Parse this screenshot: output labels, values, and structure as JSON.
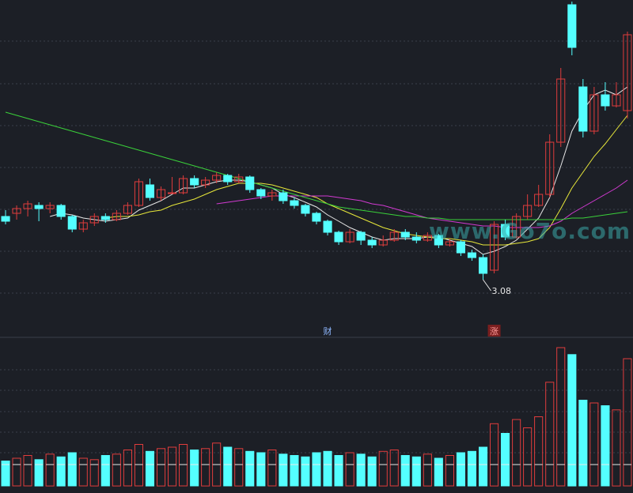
{
  "watermark": "www.Go7o.com",
  "colors": {
    "background": "#1c1f26",
    "up": "#e03c3c",
    "down": "#54ffff",
    "ma_white": "#e8e8e8",
    "ma_yellow": "#e8e83a",
    "ma_magenta": "#d13ad1",
    "ma_green": "#3ad13a",
    "grid": "#3a3f4a",
    "label_text": "#e8e8e8",
    "marker_red_bg": "#7a1f1f"
  },
  "chart_data": {
    "type": "candlestick",
    "price_range": [
      2.75,
      4.85
    ],
    "low_annotation": "3.08",
    "markers": [
      {
        "text": "财",
        "index": 29
      },
      {
        "text": "涨",
        "index": 44
      }
    ],
    "candles": [
      [
        3.48,
        3.45,
        3.52,
        3.43
      ],
      [
        3.5,
        3.53,
        3.55,
        3.46
      ],
      [
        3.53,
        3.56,
        3.58,
        3.48
      ],
      [
        3.55,
        3.53,
        3.57,
        3.45
      ],
      [
        3.53,
        3.55,
        3.57,
        3.5
      ],
      [
        3.55,
        3.48,
        3.56,
        3.46
      ],
      [
        3.48,
        3.4,
        3.49,
        3.38
      ],
      [
        3.4,
        3.44,
        3.46,
        3.38
      ],
      [
        3.44,
        3.48,
        3.5,
        3.42
      ],
      [
        3.48,
        3.46,
        3.5,
        3.44
      ],
      [
        3.46,
        3.5,
        3.52,
        3.45
      ],
      [
        3.5,
        3.55,
        3.57,
        3.49
      ],
      [
        3.55,
        3.7,
        3.72,
        3.54
      ],
      [
        3.68,
        3.6,
        3.72,
        3.58
      ],
      [
        3.6,
        3.65,
        3.67,
        3.58
      ],
      [
        3.63,
        3.63,
        3.73,
        3.63
      ],
      [
        3.63,
        3.72,
        3.74,
        3.62
      ],
      [
        3.72,
        3.68,
        3.74,
        3.66
      ],
      [
        3.68,
        3.71,
        3.73,
        3.66
      ],
      [
        3.71,
        3.74,
        3.76,
        3.69
      ],
      [
        3.74,
        3.7,
        3.75,
        3.68
      ],
      [
        3.7,
        3.73,
        3.75,
        3.69
      ],
      [
        3.73,
        3.65,
        3.74,
        3.63
      ],
      [
        3.65,
        3.61,
        3.66,
        3.59
      ],
      [
        3.61,
        3.63,
        3.65,
        3.58
      ],
      [
        3.63,
        3.58,
        3.65,
        3.56
      ],
      [
        3.58,
        3.55,
        3.6,
        3.53
      ],
      [
        3.55,
        3.5,
        3.56,
        3.48
      ],
      [
        3.5,
        3.45,
        3.51,
        3.43
      ],
      [
        3.45,
        3.38,
        3.46,
        3.36
      ],
      [
        3.38,
        3.32,
        3.39,
        3.3
      ],
      [
        3.32,
        3.38,
        3.4,
        3.31
      ],
      [
        3.38,
        3.33,
        3.39,
        3.3
      ],
      [
        3.33,
        3.3,
        3.35,
        3.28
      ],
      [
        3.3,
        3.33,
        3.36,
        3.29
      ],
      [
        3.33,
        3.38,
        3.4,
        3.32
      ],
      [
        3.38,
        3.35,
        3.4,
        3.33
      ],
      [
        3.35,
        3.33,
        3.38,
        3.31
      ],
      [
        3.33,
        3.36,
        3.38,
        3.32
      ],
      [
        3.36,
        3.3,
        3.37,
        3.28
      ],
      [
        3.3,
        3.32,
        3.34,
        3.29
      ],
      [
        3.32,
        3.25,
        3.33,
        3.23
      ],
      [
        3.25,
        3.22,
        3.27,
        3.2
      ],
      [
        3.22,
        3.12,
        3.24,
        3.08
      ],
      [
        3.14,
        3.43,
        3.45,
        3.12
      ],
      [
        3.43,
        3.35,
        3.46,
        3.33
      ],
      [
        3.35,
        3.48,
        3.5,
        3.34
      ],
      [
        3.48,
        3.55,
        3.62,
        3.46
      ],
      [
        3.55,
        3.62,
        3.68,
        3.54
      ],
      [
        3.62,
        3.95,
        4.0,
        3.6
      ],
      [
        3.95,
        4.35,
        4.42,
        3.92
      ],
      [
        4.82,
        4.55,
        4.84,
        4.5
      ],
      [
        4.3,
        4.02,
        4.35,
        3.98
      ],
      [
        4.02,
        4.25,
        4.3,
        4.0
      ],
      [
        4.25,
        4.18,
        4.33,
        4.15
      ],
      [
        4.18,
        4.25,
        4.33,
        4.17
      ],
      [
        4.15,
        4.63,
        4.65,
        4.1
      ]
    ],
    "ma_series": [
      {
        "color": "#e8e8e8",
        "values": [
          null,
          null,
          null,
          null,
          3.48,
          3.5,
          3.49,
          3.47,
          3.46,
          3.45,
          3.46,
          3.47,
          3.52,
          3.55,
          3.58,
          3.62,
          3.66,
          3.66,
          3.68,
          3.7,
          3.71,
          3.71,
          3.7,
          3.68,
          3.66,
          3.62,
          3.6,
          3.57,
          3.54,
          3.49,
          3.45,
          3.41,
          3.38,
          3.35,
          3.33,
          3.34,
          3.34,
          3.34,
          3.35,
          3.35,
          3.33,
          3.31,
          3.29,
          3.24,
          3.26,
          3.29,
          3.33,
          3.4,
          3.47,
          3.6,
          3.8,
          4.02,
          4.15,
          4.25,
          4.28,
          4.25,
          4.3
        ]
      },
      {
        "color": "#e8e8e8",
        "values": [
          null,
          null,
          null,
          null,
          null,
          null,
          null,
          null,
          null,
          3.47,
          3.48,
          3.48,
          3.49,
          3.51,
          3.52,
          3.55,
          3.57,
          3.59,
          3.62,
          3.65,
          3.67,
          3.69,
          3.69,
          3.69,
          3.68,
          3.66,
          3.64,
          3.62,
          3.6,
          3.56,
          3.53,
          3.5,
          3.47,
          3.44,
          3.41,
          3.39,
          3.37,
          3.36,
          3.35,
          3.34,
          3.34,
          3.33,
          3.32,
          3.3,
          3.3,
          3.3,
          3.31,
          3.32,
          3.34,
          3.41,
          3.53,
          3.66,
          3.76,
          3.86,
          3.94,
          4.03,
          4.12
        ]
      },
      {
        "color": "#e8e8e8",
        "values": [
          null,
          null,
          null,
          null,
          null,
          null,
          null,
          null,
          null,
          null,
          null,
          null,
          null,
          null,
          null,
          null,
          null,
          null,
          null,
          3.56,
          3.57,
          3.58,
          3.59,
          3.6,
          3.61,
          3.61,
          3.61,
          3.61,
          3.61,
          3.61,
          3.6,
          3.59,
          3.58,
          3.56,
          3.55,
          3.53,
          3.51,
          3.49,
          3.47,
          3.46,
          3.45,
          3.44,
          3.43,
          3.42,
          3.42,
          3.41,
          3.41,
          3.41,
          3.41,
          3.42,
          3.45,
          3.5,
          3.54,
          3.58,
          3.62,
          3.66,
          3.71
        ]
      },
      {
        "color": "#e8e8e8",
        "values": [
          4.14,
          4.12,
          4.1,
          4.08,
          4.06,
          4.04,
          4.02,
          4.0,
          3.98,
          3.96,
          3.94,
          3.92,
          3.9,
          3.88,
          3.86,
          3.84,
          3.82,
          3.8,
          3.78,
          3.76,
          3.74,
          3.72,
          3.7,
          3.68,
          3.66,
          3.64,
          3.62,
          3.6,
          3.58,
          3.56,
          3.54,
          3.53,
          3.52,
          3.51,
          3.5,
          3.49,
          3.48,
          3.48,
          3.47,
          3.47,
          3.46,
          3.46,
          3.46,
          3.46,
          3.46,
          3.46,
          3.46,
          3.46,
          3.46,
          3.46,
          3.46,
          3.47,
          3.47,
          3.48,
          3.49,
          3.5,
          3.51
        ]
      }
    ],
    "volume": {
      "range": [
        0,
        100
      ],
      "values": [
        18,
        20,
        22,
        19,
        23,
        21,
        24,
        20,
        19,
        22,
        23,
        26,
        30,
        25,
        27,
        28,
        30,
        26,
        27,
        31,
        28,
        27,
        25,
        24,
        26,
        23,
        22,
        21,
        24,
        25,
        22,
        24,
        23,
        21,
        25,
        26,
        22,
        21,
        23,
        20,
        22,
        24,
        25,
        28,
        45,
        38,
        48,
        42,
        50,
        75,
        100,
        95,
        62,
        60,
        58,
        55,
        92
      ],
      "lows": [
        55,
        60,
        58,
        62,
        60,
        58,
        57,
        60,
        59,
        58,
        57,
        55,
        56,
        57,
        54,
        58,
        56,
        60,
        57,
        55,
        56,
        57,
        62,
        58,
        57,
        59,
        60,
        58,
        57,
        56,
        58,
        59,
        60,
        57,
        58,
        57,
        60,
        56,
        58,
        57,
        58,
        59,
        60,
        55,
        56,
        57,
        58,
        59,
        56,
        57,
        58,
        59,
        60,
        57,
        55,
        56,
        57
      ],
      "up": [
        false,
        true,
        true,
        false,
        true,
        false,
        false,
        true,
        true,
        false,
        true,
        true,
        true,
        false,
        true,
        true,
        true,
        false,
        true,
        true,
        false,
        true,
        false,
        false,
        true,
        false,
        false,
        false,
        false,
        false,
        false,
        true,
        false,
        false,
        true,
        true,
        false,
        false,
        true,
        false,
        true,
        false,
        false,
        false,
        true,
        false,
        true,
        true,
        true,
        true,
        true,
        false,
        false,
        true,
        false,
        true,
        true
      ]
    }
  }
}
